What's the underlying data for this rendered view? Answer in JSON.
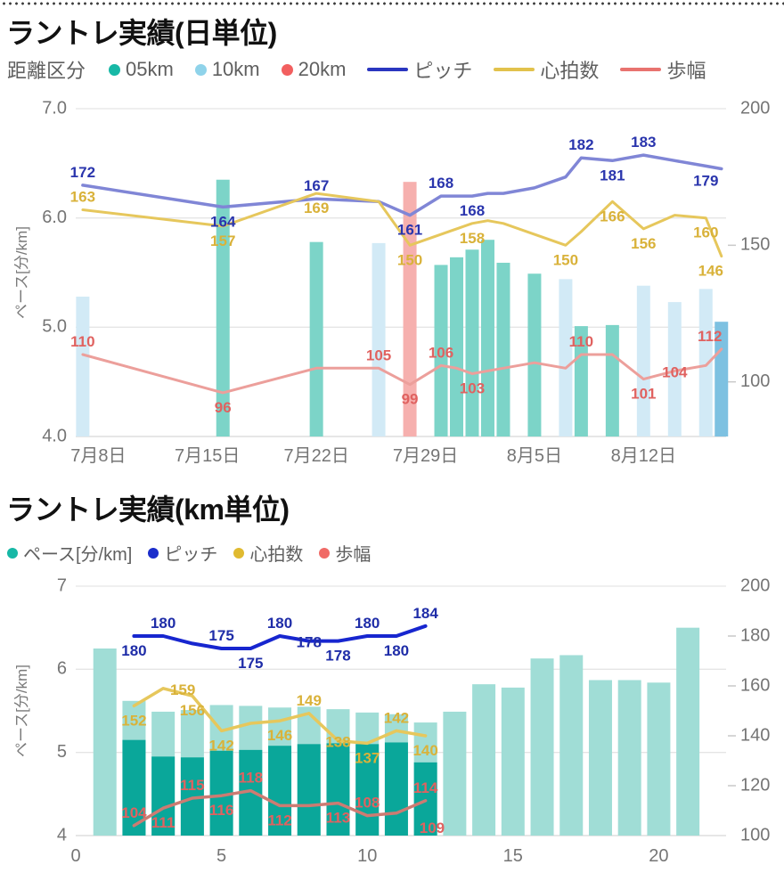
{
  "chart_data": [
    {
      "type": "combo bar+line (daily)",
      "title": "ラントレ実績(日単位)",
      "legend": {
        "title": "距離区分",
        "categories": [
          {
            "label": "05km",
            "color": "#17b8a6"
          },
          {
            "label": "10km",
            "color": "#8fd3ea"
          },
          {
            "label": "20km",
            "color": "#f25f5f"
          }
        ],
        "lines": [
          {
            "label": "ピッチ",
            "color": "#2a36c0"
          },
          {
            "label": "心拍数",
            "color": "#e2c24c"
          },
          {
            "label": "歩幅",
            "color": "#e8736f"
          }
        ]
      },
      "y_left": {
        "label": "ペース[分/km]",
        "min": 4,
        "max": 7,
        "ticks": [
          "7.0",
          "6.0",
          "5.0",
          "4.0"
        ],
        "tick_values": [
          7,
          6,
          5,
          4
        ]
      },
      "y_right": {
        "min": 80,
        "max": 200,
        "ticks": [
          {
            "v": 200,
            "t": "200",
            "dash": false
          },
          {
            "v": 150,
            "t": "150",
            "dash": true
          },
          {
            "v": 100,
            "t": "100",
            "dash": true
          }
        ]
      },
      "x_axis": {
        "day_min": -0.45,
        "day_max": 41.3,
        "ticks": [
          {
            "label": "7月8日",
            "day": 1
          },
          {
            "label": "7月15日",
            "day": 8
          },
          {
            "label": "7月22日",
            "day": 15
          },
          {
            "label": "7月29日",
            "day": 22
          },
          {
            "label": "8月5日",
            "day": 29
          },
          {
            "label": "8月12日",
            "day": 36
          }
        ]
      },
      "bar_colors": {
        "05km": "#7cd4c8",
        "10km": "#d2eaf6",
        "20km": "#f6b0ae",
        "highlight": "#7dc1e1"
      },
      "runs": [
        {
          "date": "7月7日",
          "day": 0,
          "cat": "10km",
          "pace": 5.28
        },
        {
          "date": "7月16日",
          "day": 9,
          "cat": "05km",
          "pace": 6.35
        },
        {
          "date": "7月22日",
          "day": 15,
          "cat": "05km",
          "pace": 5.78
        },
        {
          "date": "7月26日",
          "day": 19,
          "cat": "10km",
          "pace": 5.77
        },
        {
          "date": "7月28日",
          "day": 21,
          "cat": "20km",
          "pace": 6.33
        },
        {
          "date": "7月30日",
          "day": 23,
          "cat": "05km",
          "pace": 5.57
        },
        {
          "date": "7月31日",
          "day": 24,
          "cat": "05km",
          "pace": 5.64
        },
        {
          "date": "8月1日",
          "day": 25,
          "cat": "05km",
          "pace": 5.71
        },
        {
          "date": "8月2日",
          "day": 26,
          "cat": "05km",
          "pace": 5.8
        },
        {
          "date": "8月3日",
          "day": 27,
          "cat": "05km",
          "pace": 5.59
        },
        {
          "date": "8月5日",
          "day": 29,
          "cat": "05km",
          "pace": 5.49
        },
        {
          "date": "8月7日",
          "day": 31,
          "cat": "10km",
          "pace": 5.44
        },
        {
          "date": "8月8日",
          "day": 32,
          "cat": "05km",
          "pace": 5.01
        },
        {
          "date": "8月10日",
          "day": 34,
          "cat": "05km",
          "pace": 5.02
        },
        {
          "date": "8月12日",
          "day": 36,
          "cat": "10km",
          "pace": 5.38
        },
        {
          "date": "8月14日",
          "day": 38,
          "cat": "10km",
          "pace": 5.23
        },
        {
          "date": "8月16日",
          "day": 40,
          "cat": "10km",
          "pace": 5.35
        },
        {
          "date": "8月17日",
          "day": 41,
          "cat": "10km",
          "pace": 5.05,
          "highlight": true
        }
      ],
      "series": [
        {
          "name": "ピッチ",
          "color": "#8086d6",
          "label_color": "#2a35ad",
          "width": 3.5,
          "values": [
            172,
            164,
            167,
            166,
            161,
            168,
            168,
            168,
            169,
            169,
            171,
            175,
            182,
            181,
            183,
            181,
            179,
            178
          ],
          "labels": [
            {
              "i": 0,
              "t": "172",
              "side": "above"
            },
            {
              "i": 1,
              "t": "164",
              "side": "below"
            },
            {
              "i": 2,
              "t": "167",
              "side": "above"
            },
            {
              "i": 4,
              "t": "161",
              "side": "below"
            },
            {
              "i": 5,
              "t": "168",
              "side": "above"
            },
            {
              "i": 7,
              "t": "168",
              "side": "below"
            },
            {
              "i": 12,
              "t": "182",
              "side": "above"
            },
            {
              "i": 13,
              "t": "181",
              "side": "below"
            },
            {
              "i": 14,
              "t": "183",
              "side": "above"
            },
            {
              "i": 16,
              "t": "179",
              "side": "below"
            }
          ]
        },
        {
          "name": "心拍数",
          "color": "#e6c75c",
          "label_color": "#d9b23a",
          "width": 3,
          "values": [
            163,
            157,
            169,
            166,
            150,
            154,
            156,
            158,
            159,
            158,
            154,
            150,
            155,
            166,
            156,
            161,
            160,
            146
          ],
          "labels": [
            {
              "i": 0,
              "t": "163",
              "side": "above"
            },
            {
              "i": 1,
              "t": "157",
              "side": "below"
            },
            {
              "i": 2,
              "t": "169",
              "side": "below"
            },
            {
              "i": 4,
              "t": "150",
              "side": "below"
            },
            {
              "i": 7,
              "t": "158",
              "side": "below"
            },
            {
              "i": 11,
              "t": "150",
              "side": "below"
            },
            {
              "i": 13,
              "t": "166",
              "side": "below"
            },
            {
              "i": 14,
              "t": "156",
              "side": "below"
            },
            {
              "i": 16,
              "t": "160",
              "side": "below"
            },
            {
              "i": 17,
              "t": "146",
              "side": "below",
              "dx": -12
            }
          ]
        },
        {
          "name": "歩幅",
          "color": "#ec9f9b",
          "label_color": "#e06260",
          "width": 3,
          "values": [
            110,
            96,
            105,
            105,
            99,
            106,
            105,
            103,
            104,
            105,
            107,
            105,
            110,
            110,
            101,
            104,
            106,
            112
          ],
          "labels": [
            {
              "i": 0,
              "t": "110",
              "side": "above"
            },
            {
              "i": 1,
              "t": "96",
              "side": "below"
            },
            {
              "i": 3,
              "t": "105",
              "side": "above"
            },
            {
              "i": 4,
              "t": "99",
              "side": "below"
            },
            {
              "i": 5,
              "t": "106",
              "side": "above"
            },
            {
              "i": 7,
              "t": "103",
              "side": "below"
            },
            {
              "i": 12,
              "t": "110",
              "side": "above"
            },
            {
              "i": 14,
              "t": "101",
              "side": "below"
            },
            {
              "i": 15,
              "t": "104",
              "side": "on"
            },
            {
              "i": 17,
              "t": "112",
              "side": "above",
              "dx": -13
            }
          ]
        }
      ]
    },
    {
      "type": "combo bar+line (per km)",
      "title": "ラントレ実績(km単位)",
      "legend": {
        "items": [
          {
            "label": "ペース[分/km]",
            "color": "#17b8a6"
          },
          {
            "label": "ピッチ",
            "color": "#1b2dcb"
          },
          {
            "label": "心拍数",
            "color": "#e0ba30"
          },
          {
            "label": "歩幅",
            "color": "#f06a66"
          }
        ]
      },
      "y_left": {
        "label": "ペース[分/km]",
        "min": 4,
        "max": 7,
        "ticks": [
          "7",
          "6",
          "5",
          "4"
        ],
        "tick_values": [
          7,
          6,
          5,
          4
        ]
      },
      "y_right": {
        "min": 100,
        "max": 200,
        "ticks": [
          {
            "v": 200,
            "t": "200",
            "dash": false
          },
          {
            "v": 180,
            "t": "180",
            "dash": true
          },
          {
            "v": 160,
            "t": "160",
            "dash": true
          },
          {
            "v": 140,
            "t": "140",
            "dash": true
          },
          {
            "v": 120,
            "t": "120",
            "dash": true
          },
          {
            "v": 100,
            "t": "100",
            "dash": false
          }
        ]
      },
      "x_axis": {
        "km_min": 0,
        "km_max": 22.31,
        "ticks": [
          {
            "label": "0",
            "km": 0
          },
          {
            "label": "5",
            "km": 5
          },
          {
            "label": "10",
            "km": 10
          },
          {
            "label": "15",
            "km": 15
          },
          {
            "label": "20",
            "km": 20
          }
        ]
      },
      "bars": {
        "pale_color": "#a0ddd6",
        "dark_color": "#0aa79a",
        "km": [
          1,
          2,
          3,
          4,
          5,
          6,
          7,
          8,
          9,
          10,
          11,
          12,
          13,
          14,
          15,
          16,
          17,
          18,
          19,
          20,
          21
        ],
        "pace_all": [
          6.25,
          5.62,
          5.49,
          5.51,
          5.57,
          5.56,
          5.54,
          5.55,
          5.52,
          5.48,
          5.46,
          5.36,
          5.49,
          5.82,
          5.78,
          6.13,
          6.17,
          5.87,
          5.87,
          5.84,
          6.5
        ],
        "pace_recent": [
          null,
          5.15,
          4.95,
          4.94,
          5.02,
          5.03,
          5.08,
          5.1,
          5.11,
          5.1,
          5.12,
          4.88,
          null,
          null,
          null,
          null,
          null,
          null,
          null,
          null,
          null
        ]
      },
      "series": [
        {
          "name": "ピッチ",
          "color": "#1726cf",
          "label_color": "#1f2da8",
          "width": 4,
          "km_start": 2,
          "values": [
            180,
            180,
            177,
            175,
            175,
            180,
            178,
            178,
            180,
            180,
            184
          ],
          "labels": [
            {
              "i": 0,
              "t": "180",
              "side": "below"
            },
            {
              "i": 1,
              "t": "180",
              "side": "above"
            },
            {
              "i": 3,
              "t": "175",
              "side": "above"
            },
            {
              "i": 4,
              "t": "175",
              "side": "below"
            },
            {
              "i": 5,
              "t": "180",
              "side": "above"
            },
            {
              "i": 6,
              "t": "178",
              "side": "on"
            },
            {
              "i": 7,
              "t": "178",
              "side": "below"
            },
            {
              "i": 8,
              "t": "180",
              "side": "above"
            },
            {
              "i": 9,
              "t": "180",
              "side": "below"
            },
            {
              "i": 10,
              "t": "184",
              "side": "above"
            }
          ]
        },
        {
          "name": "心拍数",
          "color": "#e6c75c",
          "label_color": "#d9b23a",
          "width": 3.5,
          "km_start": 2,
          "values": [
            152,
            159,
            156,
            142,
            145,
            146,
            149,
            138,
            137,
            142,
            140
          ],
          "labels": [
            {
              "i": 0,
              "t": "152",
              "side": "below"
            },
            {
              "i": 1,
              "t": "159",
              "side": "on",
              "dx": 22
            },
            {
              "i": 2,
              "t": "156",
              "side": "below"
            },
            {
              "i": 3,
              "t": "142",
              "side": "below"
            },
            {
              "i": 5,
              "t": "146",
              "side": "below"
            },
            {
              "i": 6,
              "t": "149",
              "side": "above"
            },
            {
              "i": 7,
              "t": "138",
              "side": "on"
            },
            {
              "i": 8,
              "t": "137",
              "side": "below"
            },
            {
              "i": 9,
              "t": "142",
              "side": "above"
            },
            {
              "i": 10,
              "t": "140",
              "side": "below"
            }
          ]
        },
        {
          "name": "歩幅",
          "color": "#cd7b72",
          "label_color": "#e06260",
          "width": 3.5,
          "km_start": 2,
          "values": [
            104,
            111,
            115,
            116,
            118,
            112,
            112,
            113,
            108,
            109,
            114
          ],
          "labels": [
            {
              "i": 0,
              "t": "104",
              "side": "above"
            },
            {
              "i": 1,
              "t": "111",
              "side": "below"
            },
            {
              "i": 2,
              "t": "115",
              "side": "above"
            },
            {
              "i": 3,
              "t": "116",
              "side": "below"
            },
            {
              "i": 4,
              "t": "118",
              "side": "above"
            },
            {
              "i": 5,
              "t": "112",
              "side": "below"
            },
            {
              "i": 7,
              "t": "113",
              "side": "below"
            },
            {
              "i": 8,
              "t": "108",
              "side": "above"
            },
            {
              "i": 9,
              "t": "109",
              "side": "below",
              "dx": 40
            },
            {
              "i": 10,
              "t": "114",
              "side": "above"
            }
          ]
        }
      ]
    }
  ]
}
